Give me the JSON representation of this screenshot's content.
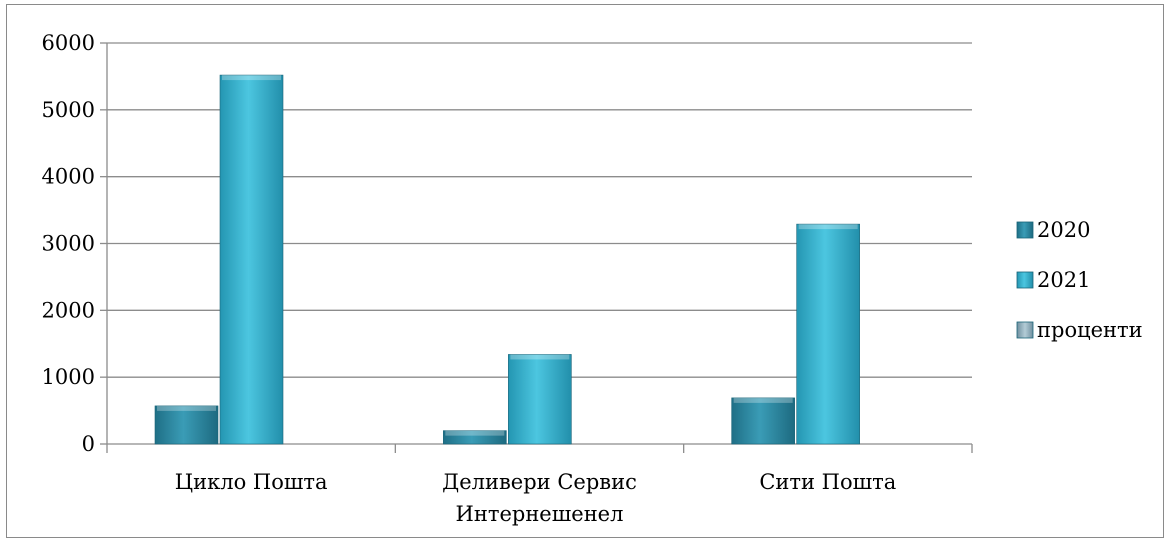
{
  "chart_data": {
    "type": "bar",
    "categories": [
      [
        "Цикло Пошта"
      ],
      [
        "Деливери Сервис",
        "Интернешенел"
      ],
      [
        "Сити Пошта"
      ]
    ],
    "series": [
      {
        "name": "2020",
        "values": [
          570,
          200,
          690
        ],
        "color": "#2f8fa8"
      },
      {
        "name": "2021",
        "values": [
          5520,
          1340,
          3290
        ],
        "color": "#35b3cf"
      },
      {
        "name": "проценти",
        "values": [
          0,
          0,
          0
        ],
        "color": "#8faebd"
      }
    ],
    "ylim": [
      0,
      6000
    ],
    "yticks": [
      "0",
      "1000",
      "2000",
      "3000",
      "4000",
      "5000",
      "6000"
    ],
    "grid": true,
    "legend": "right",
    "title": "",
    "xlabel": "",
    "ylabel": ""
  }
}
